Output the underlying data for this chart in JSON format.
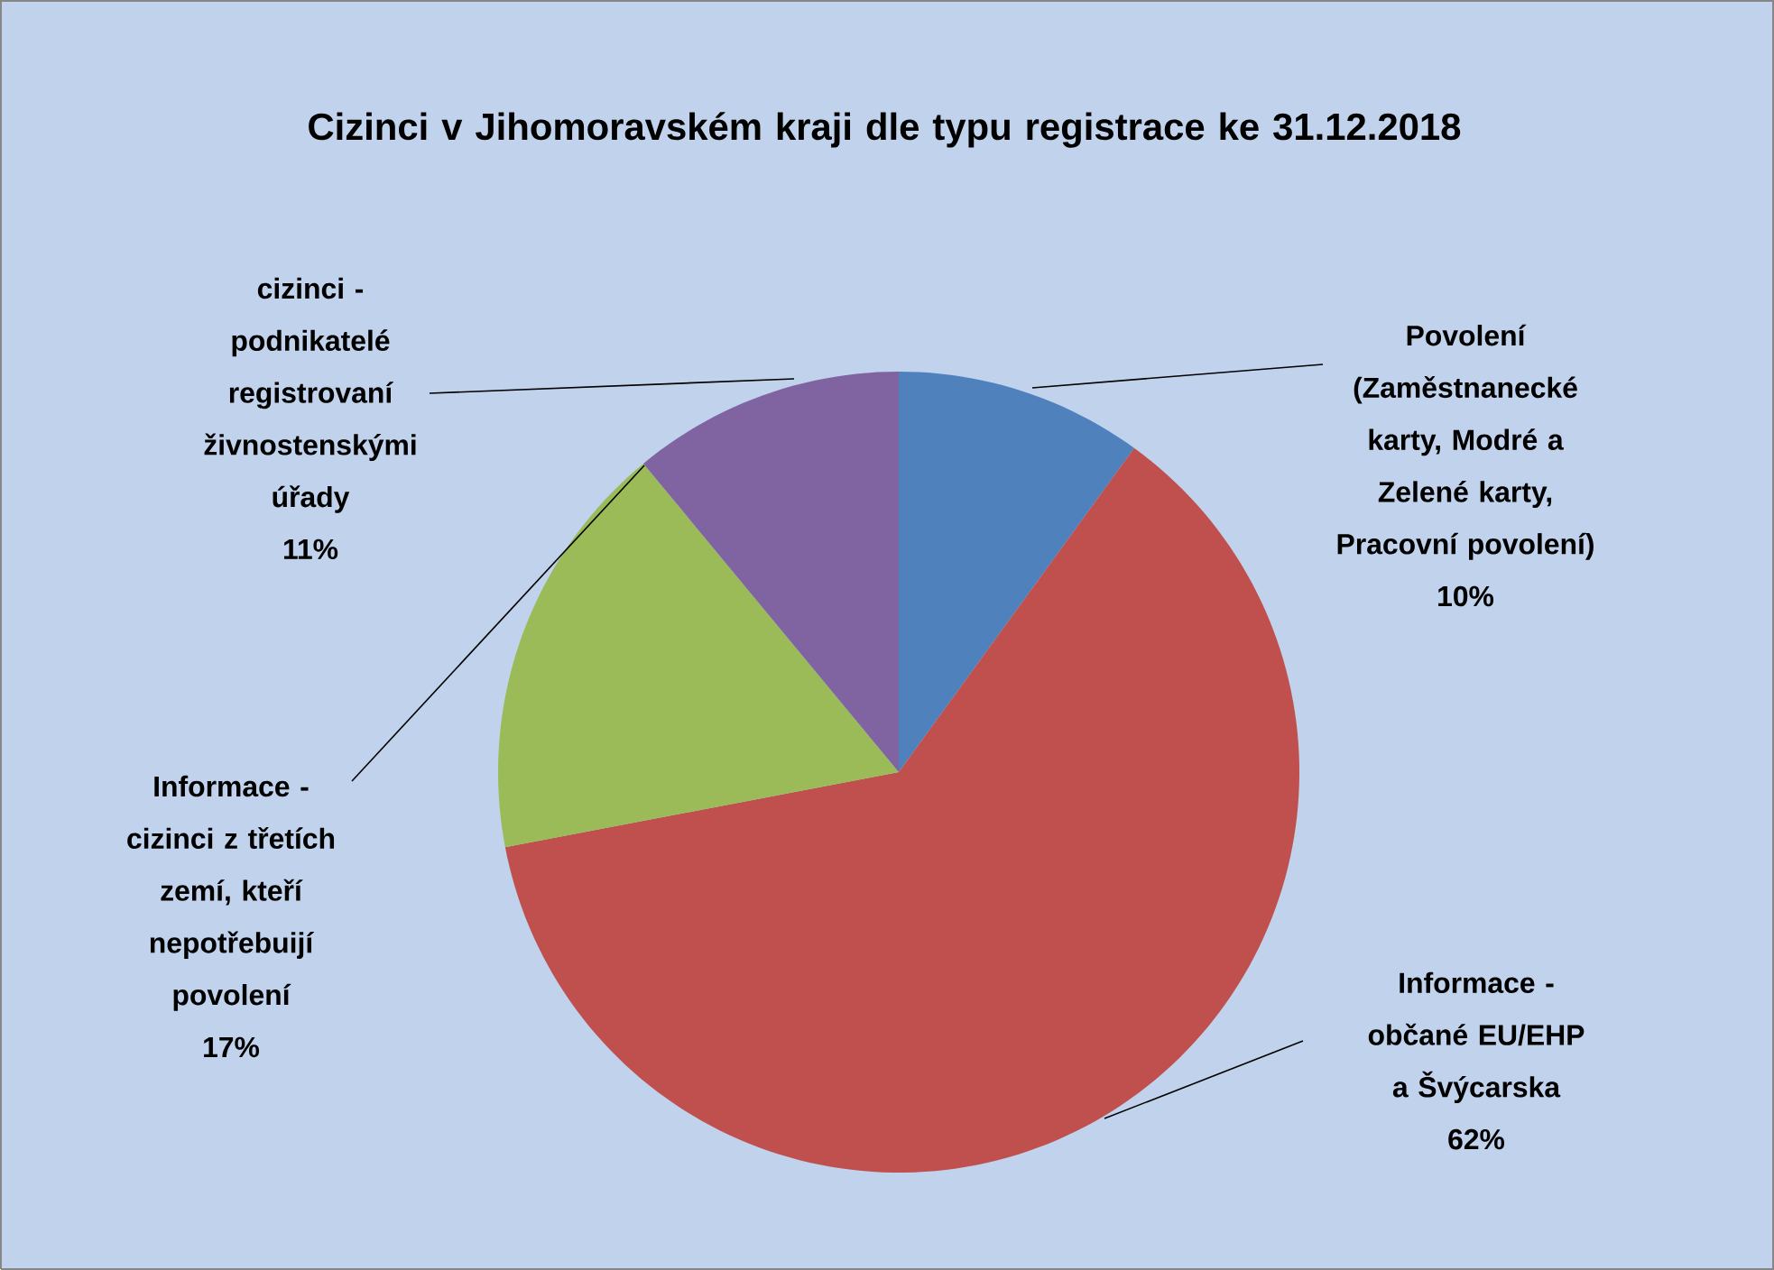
{
  "chart_data": {
    "type": "pie",
    "title": "Cizinci v Jihomoravském kraji dle typu registrace ke 31.12.2018",
    "categories": [
      "Povolení (Zaměstnanecké karty, Modré a Zelené karty, Pracovní povolení)",
      "Informace - občané EU/EHP a Švýcarska",
      "Informace - cizinci z třetích zemí, kteří nepotřebuijí povolení",
      "cizinci - podnikatelé registrovaní živnostenskými úřady"
    ],
    "values": [
      10,
      62,
      17,
      11
    ],
    "value_labels": [
      "10%",
      "62%",
      "17%",
      "11%"
    ],
    "colors": [
      "#4f81bd",
      "#c0504d",
      "#9bbb59",
      "#8064a2"
    ]
  }
}
